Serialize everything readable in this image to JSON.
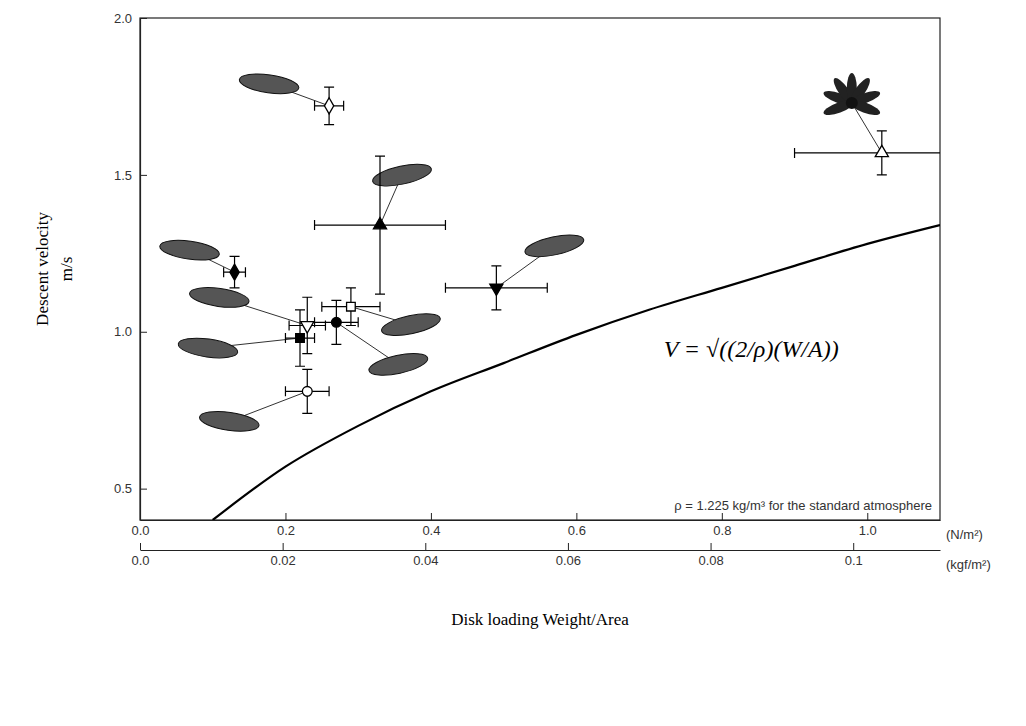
{
  "chart_data": {
    "type": "scatter",
    "xlabel": "Disk loading Weight/Area",
    "ylabel": "Descent velocity",
    "ylabel_unit": "m/s",
    "x_unit": "(N/m²)",
    "x2_unit": "(kgf/m²)",
    "equation": "V = √((2/ρ)(W/A))",
    "note": "ρ = 1.225 kg/m³ for the standard atmosphere",
    "xlim": [
      0,
      1.1
    ],
    "xticks": [
      {
        "value": 0,
        "label": "0.0"
      },
      0.2,
      0.4,
      0.6,
      0.8,
      {
        "value": 1,
        "label": "1.0"
      }
    ],
    "x2lim": [
      0,
      0.11217
    ],
    "x2ticks": [
      {
        "value": 0,
        "label": "0.0"
      },
      0.02,
      0.04,
      0.06,
      0.08,
      0.1
    ],
    "ylim": [
      0.4,
      2.0
    ],
    "yticks": [
      0.5,
      {
        "value": 1,
        "label": "1.0"
      },
      1.5,
      {
        "value": 2,
        "label": "2.0"
      }
    ],
    "series": [
      {
        "type": "line",
        "color": "#000000",
        "line_style": "solid",
        "x": [
          0.1,
          0.2,
          0.3,
          0.4,
          0.5,
          0.6,
          0.7,
          0.8,
          0.9,
          1.0,
          1.1
        ],
        "values": [
          0.4,
          0.57,
          0.7,
          0.81,
          0.9,
          0.99,
          1.07,
          1.14,
          1.21,
          1.28,
          1.34
        ]
      },
      {
        "type": "scatter",
        "marker": "diamond-open",
        "color": "#000000",
        "x": [
          0.26
        ],
        "values": [
          1.72
        ],
        "xerr": [
          0.02
        ],
        "yerr": [
          0.06
        ]
      },
      {
        "type": "scatter",
        "marker": "triangle-filled",
        "color": "#000000",
        "x": [
          0.33
        ],
        "values": [
          1.34
        ],
        "xerr": [
          0.09
        ],
        "yerr": [
          0.22
        ]
      },
      {
        "type": "scatter",
        "marker": "diamond-filled",
        "color": "#000000",
        "x": [
          0.13
        ],
        "values": [
          1.19
        ],
        "xerr": [
          0.015
        ],
        "yerr": [
          0.05
        ]
      },
      {
        "type": "scatter",
        "marker": "square-open",
        "color": "#000000",
        "x": [
          0.29
        ],
        "values": [
          1.08
        ],
        "xerr": [
          0.04
        ],
        "yerr": [
          0.06
        ]
      },
      {
        "type": "scatter",
        "marker": "triangle-down-open",
        "color": "#000000",
        "x": [
          0.23
        ],
        "values": [
          1.02
        ],
        "xerr": [
          0.025
        ],
        "yerr": [
          0.09
        ]
      },
      {
        "type": "scatter",
        "marker": "circle-filled",
        "color": "#000000",
        "x": [
          0.27
        ],
        "values": [
          1.03
        ],
        "xerr": [
          0.03
        ],
        "yerr": [
          0.07
        ]
      },
      {
        "type": "scatter",
        "marker": "square-filled",
        "color": "#000000",
        "x": [
          0.22
        ],
        "values": [
          0.98
        ],
        "xerr": [
          0.02
        ],
        "yerr": [
          0.09
        ]
      },
      {
        "type": "scatter",
        "marker": "circle-open",
        "color": "#000000",
        "x": [
          0.23
        ],
        "values": [
          0.81
        ],
        "xerr": [
          0.03
        ],
        "yerr": [
          0.07
        ]
      },
      {
        "type": "scatter",
        "marker": "triangle-down-filled",
        "color": "#000000",
        "x": [
          0.49
        ],
        "values": [
          1.14
        ],
        "xerr": [
          0.07
        ],
        "yerr": [
          0.07
        ]
      },
      {
        "type": "scatter",
        "marker": "triangle-open",
        "color": "#000000",
        "x": [
          1.02
        ],
        "values": [
          1.57
        ],
        "xerr": [
          0.12
        ],
        "yerr": [
          0.07
        ]
      }
    ]
  }
}
